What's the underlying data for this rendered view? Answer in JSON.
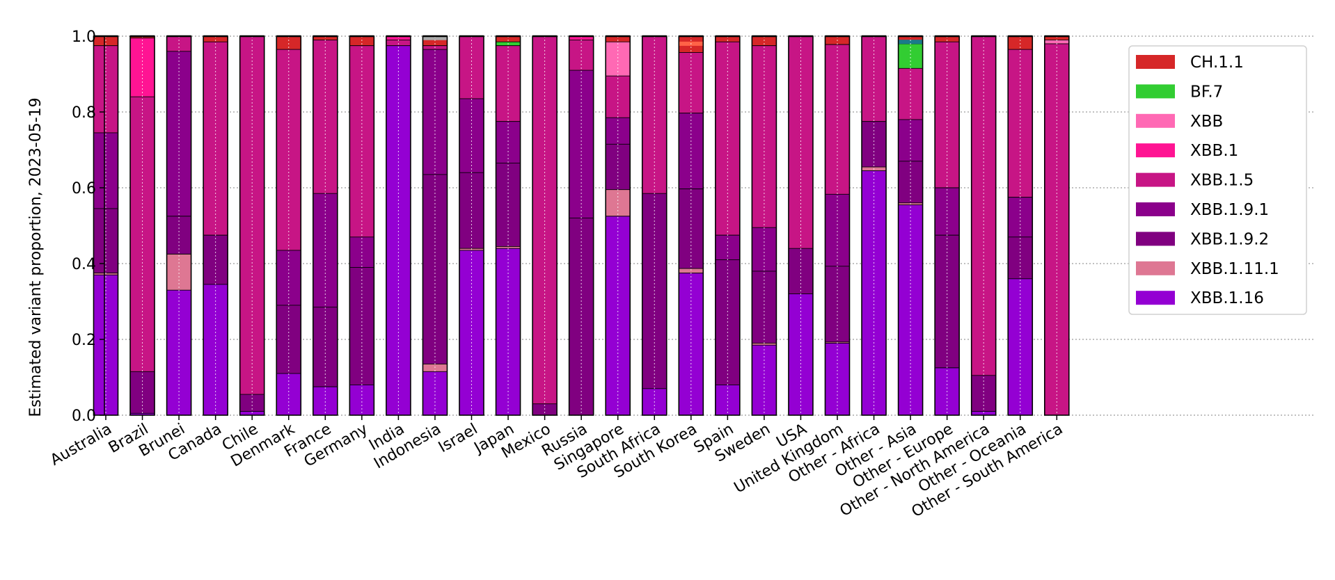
{
  "chart_data": {
    "type": "bar",
    "stacked": true,
    "ylabel": "Estimated variant proportion, 2023-05-19",
    "xlabel": "",
    "ylim": [
      0,
      1.0
    ],
    "yticks": [
      "0.0",
      "0.2",
      "0.4",
      "0.6",
      "0.8",
      "1.0"
    ],
    "grid": true,
    "legend_position": "top-right",
    "categories": [
      "Australia",
      "Brazil",
      "Brunei",
      "Canada",
      "Chile",
      "Denmark",
      "France",
      "Germany",
      "India",
      "Indonesia",
      "Israel",
      "Japan",
      "Mexico",
      "Russia",
      "Singapore",
      "South Africa",
      "South Korea",
      "Spain",
      "Sweden",
      "USA",
      "United Kingdom",
      "Other - Africa",
      "Other - Asia",
      "Other - Europe",
      "Other - North America",
      "Other - Oceania",
      "Other - South America"
    ],
    "legend": [
      "CH.1.1",
      "BF.7",
      "XBB",
      "XBB.1",
      "XBB.1.5",
      "XBB.1.9.1",
      "XBB.1.9.2",
      "XBB.1.11.1",
      "XBB.1.16"
    ],
    "series": [
      {
        "name": "XBB.1.16",
        "color": "#9400d3",
        "values": [
          0.37,
          0.005,
          0.33,
          0.345,
          0.01,
          0.11,
          0.075,
          0.08,
          0.975,
          0.115,
          0.435,
          0.44,
          0.0,
          0.0,
          0.525,
          0.07,
          0.375,
          0.08,
          0.185,
          0.32,
          0.19,
          0.645,
          0.555,
          0.125,
          0.01,
          0.36,
          0.0
        ]
      },
      {
        "name": "XBB.1.11.1",
        "color": "#de7793",
        "values": [
          0.005,
          0.0,
          0.095,
          0.0,
          0.0,
          0.0,
          0.0,
          0.0,
          0.0,
          0.02,
          0.005,
          0.005,
          0.0,
          0.0,
          0.07,
          0.0,
          0.012,
          0.0,
          0.005,
          0.0,
          0.003,
          0.01,
          0.005,
          0.0,
          0.0,
          0.0,
          0.0
        ]
      },
      {
        "name": "XBB.1.9.2",
        "color": "#800080",
        "values": [
          0.17,
          0.11,
          0.1,
          0.13,
          0.045,
          0.18,
          0.21,
          0.31,
          0.0,
          0.5,
          0.2,
          0.22,
          0.03,
          0.52,
          0.12,
          0.515,
          0.21,
          0.33,
          0.19,
          0.12,
          0.2,
          0.12,
          0.11,
          0.35,
          0.095,
          0.11,
          0.0
        ]
      },
      {
        "name": "XBB.1.9.1",
        "color": "#8b008b",
        "values": [
          0.2,
          0.0,
          0.435,
          0.0,
          0.0,
          0.145,
          0.3,
          0.08,
          0.0,
          0.33,
          0.195,
          0.11,
          0.0,
          0.39,
          0.07,
          0.0,
          0.2,
          0.065,
          0.115,
          0.0,
          0.19,
          0.0,
          0.11,
          0.125,
          0.0,
          0.105,
          0.0
        ]
      },
      {
        "name": "XBB.1.5",
        "color": "#c71585",
        "values": [
          0.23,
          0.725,
          0.04,
          0.51,
          0.945,
          0.53,
          0.405,
          0.505,
          0.015,
          0.01,
          0.165,
          0.2,
          0.97,
          0.08,
          0.11,
          0.415,
          0.16,
          0.51,
          0.48,
          0.56,
          0.395,
          0.225,
          0.135,
          0.385,
          0.895,
          0.39,
          0.98
        ]
      },
      {
        "name": "XBB.1",
        "color": "#ff1493",
        "values": [
          0.0,
          0.155,
          0.0,
          0.0,
          0.0,
          0.0,
          0.0,
          0.0,
          0.01,
          0.0,
          0.0,
          0.0,
          0.0,
          0.01,
          0.0,
          0.0,
          0.0,
          0.0,
          0.0,
          0.0,
          0.0,
          0.0,
          0.0,
          0.0,
          0.0,
          0.0,
          0.0
        ]
      },
      {
        "name": "XBB",
        "color": "#ff69b4",
        "values": [
          0.0,
          0.0,
          0.0,
          0.0,
          0.0,
          0.0,
          0.0,
          0.0,
          0.0,
          0.0,
          0.0,
          0.0,
          0.0,
          0.0,
          0.09,
          0.0,
          0.0,
          0.0,
          0.0,
          0.0,
          0.0,
          0.0,
          0.0,
          0.0,
          0.0,
          0.0,
          0.01
        ]
      },
      {
        "name": "BF.7",
        "color": "#32cd32",
        "values": [
          0.0,
          0.0,
          0.0,
          0.0,
          0.0,
          0.0,
          0.0,
          0.0,
          0.0,
          0.0,
          0.0,
          0.01,
          0.0,
          0.0,
          0.0,
          0.0,
          0.0,
          0.0,
          0.0,
          0.0,
          0.0,
          0.0,
          0.065,
          0.0,
          0.0,
          0.0,
          0.0
        ]
      },
      {
        "name": "CH.1.1",
        "color": "#d62728",
        "values": [
          0.025,
          0.005,
          0.0,
          0.015,
          0.0,
          0.035,
          0.01,
          0.025,
          0.0,
          0.025,
          0.0,
          0.015,
          0.0,
          0.0,
          0.015,
          0.0,
          0.043,
          0.015,
          0.025,
          0.0,
          0.022,
          0.0,
          0.02,
          0.015,
          0.0,
          0.035,
          0.01
        ]
      }
    ],
    "stripes": [
      {
        "category": "Indonesia",
        "at": 0.995,
        "color": "#aaaaaa"
      },
      {
        "category": "Other - Asia",
        "at": 0.985,
        "color": "#1a7a8a"
      },
      {
        "category": "South Korea",
        "at": 0.98,
        "color": "#ff6347"
      }
    ]
  }
}
